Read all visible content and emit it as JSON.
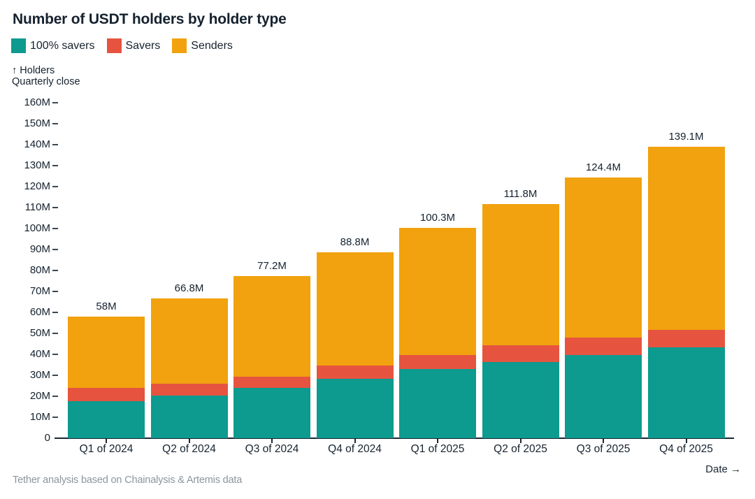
{
  "title": "Number of USDT holders by holder type",
  "legend": [
    {
      "label": "100% savers",
      "color": "#0d9a8f"
    },
    {
      "label": "Savers",
      "color": "#e65440"
    },
    {
      "label": "Senders",
      "color": "#f1a20e"
    }
  ],
  "y_axis": {
    "label": "↑ Holders",
    "sublabel": "Quarterly close"
  },
  "x_axis": {
    "label": "Date →"
  },
  "footer": "Tether analysis based on Chainalysis & Artemis data",
  "chart_data": {
    "type": "bar",
    "stacked": true,
    "title": "Number of USDT holders by holder type",
    "ylabel": "Holders (quarterly close)",
    "xlabel": "Date",
    "ylim": [
      0,
      160
    ],
    "grid": false,
    "legend_position": "top-left",
    "unit": "M",
    "categories": [
      "Q1 of 2024",
      "Q2 of 2024",
      "Q3 of 2024",
      "Q4 of 2024",
      "Q1 of 2025",
      "Q2 of 2025",
      "Q3 of 2025",
      "Q4 of 2025"
    ],
    "series": [
      {
        "name": "100% savers",
        "color": "#0d9a8f",
        "values": [
          17.7,
          20.4,
          24.0,
          28.4,
          32.9,
          36.4,
          39.6,
          43.2
        ]
      },
      {
        "name": "Savers",
        "color": "#e65440",
        "values": [
          6.3,
          5.5,
          5.2,
          6.2,
          6.9,
          7.8,
          8.3,
          8.6
        ]
      },
      {
        "name": "Senders",
        "color": "#f1a20e",
        "values": [
          34.0,
          40.9,
          48.0,
          54.2,
          60.5,
          67.6,
          76.5,
          87.3
        ]
      }
    ],
    "totals": [
      58.0,
      66.8,
      77.2,
      88.8,
      100.3,
      111.8,
      124.4,
      139.1
    ],
    "total_labels": [
      "58M",
      "66.8M",
      "77.2M",
      "88.8M",
      "100.3M",
      "111.8M",
      "124.4M",
      "139.1M"
    ],
    "y_ticks": [
      "0",
      "10M",
      "20M",
      "30M",
      "40M",
      "50M",
      "60M",
      "70M",
      "80M",
      "90M",
      "100M",
      "110M",
      "120M",
      "130M",
      "140M",
      "150M",
      "160M"
    ]
  }
}
